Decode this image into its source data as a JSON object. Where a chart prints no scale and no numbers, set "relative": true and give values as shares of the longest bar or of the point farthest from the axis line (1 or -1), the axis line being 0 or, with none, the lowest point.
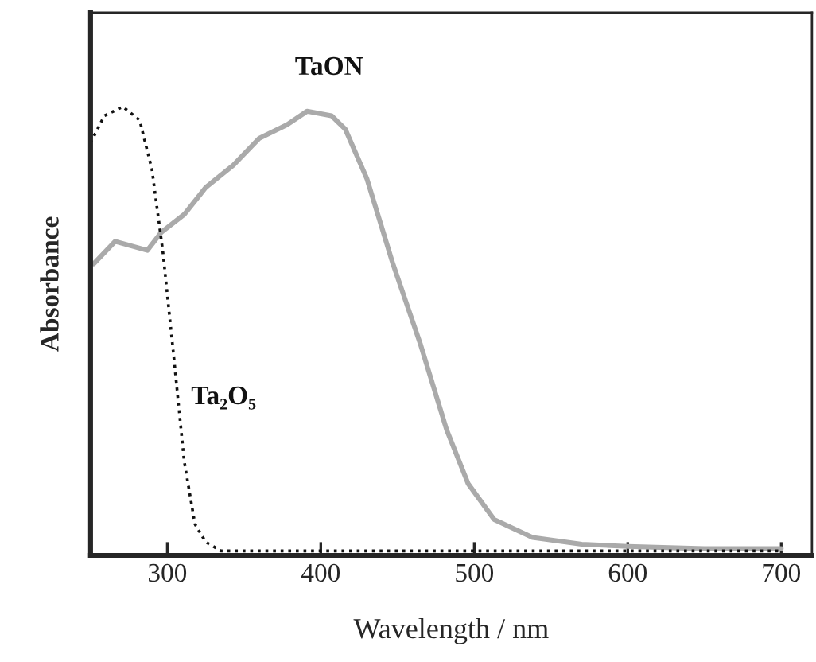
{
  "chart_data": {
    "type": "line",
    "xlabel": "Wavelength / nm",
    "ylabel": "Absorbance",
    "relative": true,
    "tick_labels": "x",
    "xlim": [
      250,
      720
    ],
    "xticks": [
      300,
      400,
      500,
      600,
      700
    ],
    "grid": false,
    "legend": false,
    "series": [
      {
        "name": "TaON",
        "color": "#aaaaaa",
        "line_style": "solid",
        "x": [
          252,
          266,
          287,
          296,
          311,
          325,
          343,
          360,
          378,
          391,
          407,
          416,
          430,
          447,
          465,
          482,
          496,
          513,
          538,
          570,
          600,
          650,
          700
        ],
        "values": [
          0.65,
          0.7,
          0.68,
          0.72,
          0.76,
          0.82,
          0.87,
          0.93,
          0.96,
          0.99,
          0.98,
          0.95,
          0.84,
          0.65,
          0.47,
          0.28,
          0.16,
          0.08,
          0.04,
          0.025,
          0.02,
          0.015,
          0.015
        ]
      },
      {
        "name": "Ta₂O₅",
        "color": "#111111",
        "line_style": "dotted",
        "x": [
          250,
          259,
          271,
          282,
          290,
          297,
          304,
          311,
          318,
          325,
          335,
          400,
          500,
          600,
          700
        ],
        "values": [
          0.92,
          0.98,
          1.0,
          0.97,
          0.86,
          0.68,
          0.45,
          0.21,
          0.07,
          0.03,
          0.01,
          0.01,
          0.01,
          0.01,
          0.01
        ]
      }
    ]
  }
}
